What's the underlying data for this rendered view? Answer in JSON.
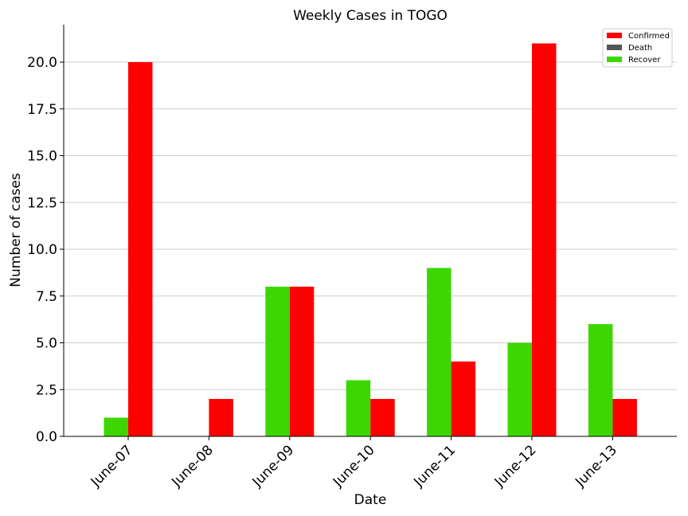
{
  "chart_data": {
    "type": "bar",
    "title": "Weekly Cases in TOGO",
    "xlabel": "Date",
    "ylabel": "Number of cases",
    "categories": [
      "June-07",
      "June-08",
      "June-09",
      "June-10",
      "June-11",
      "June-12",
      "June-13"
    ],
    "series": [
      {
        "name": "Recover",
        "color": "#3cd700",
        "values": [
          1,
          0,
          8,
          3,
          9,
          5,
          6
        ]
      },
      {
        "name": "Confirmed",
        "color": "#ff0000",
        "values": [
          20,
          2,
          8,
          2,
          4,
          21,
          2
        ]
      },
      {
        "name": "Death",
        "color": "#555555",
        "values": [
          0,
          0,
          0,
          0,
          0,
          0,
          0
        ]
      }
    ],
    "legend_order": [
      "Confirmed",
      "Death",
      "Recover"
    ],
    "ylim": [
      0,
      22
    ],
    "yticks": [
      "0.0",
      "2.5",
      "5.0",
      "7.5",
      "10.0",
      "12.5",
      "15.0",
      "17.5",
      "20.0"
    ],
    "grid": "horizontal",
    "legend_position": "top-right"
  }
}
